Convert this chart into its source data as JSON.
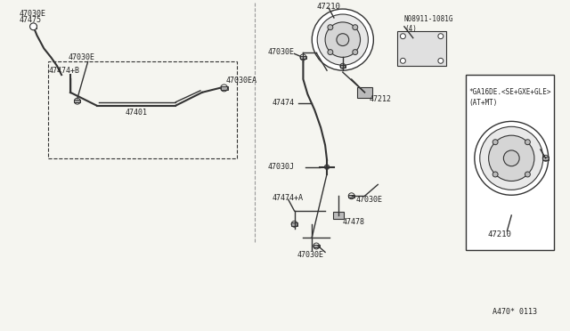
{
  "bg_color": "#f5f5f0",
  "title": "",
  "diagram_code": "A470* 0113",
  "note_text": "*GA16DE.<SE+GXE+GLE>\n(AT+MT)",
  "labels": {
    "47030E_top_left": "47030E",
    "47030EA": "47030EA",
    "47401": "47401",
    "47474B": "47474+B",
    "47030E_bot_left": "47030E",
    "47475": "47475",
    "47030E_top_mid": "47030E",
    "47030E_mid": "47030E",
    "47478": "47478",
    "47474A": "47474+A",
    "47030J": "47030J",
    "47474": "47474",
    "47212": "47212",
    "47030E_lower_mid": "47030E",
    "47210_lower": "47210",
    "N08911": "N08911-1081G\n(4)",
    "47210_right": "47210"
  },
  "line_color": "#333333",
  "text_color": "#222222",
  "box_color": "#dddddd"
}
